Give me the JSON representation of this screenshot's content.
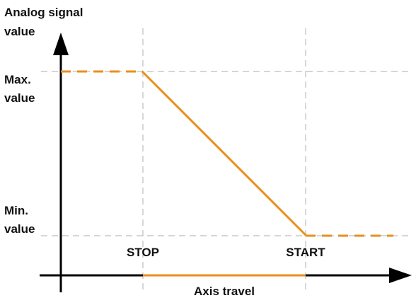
{
  "labels": {
    "y_axis_line1": "Analog signal",
    "y_axis_line2": "value",
    "max_line1": "Max.",
    "max_line2": "value",
    "min_line1": "Min.",
    "min_line2": "value",
    "stop": "STOP",
    "start": "START",
    "x_axis": "Axis travel"
  },
  "colors": {
    "signal": "#e8901e",
    "guides": "#bdbdbd",
    "axes": "#000000",
    "text": "#111111"
  },
  "signal_profile": [
    {
      "segment": "before-stop",
      "level": "max",
      "style": "dashed"
    },
    {
      "segment": "stop-to-start",
      "from": "max",
      "to": "min",
      "style": "solid"
    },
    {
      "segment": "after-start",
      "level": "min",
      "style": "dashed"
    }
  ]
}
